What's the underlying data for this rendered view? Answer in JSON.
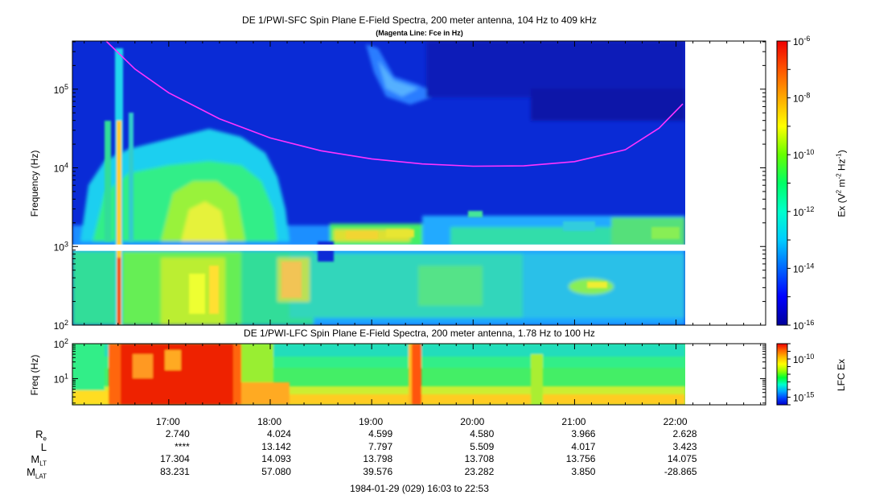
{
  "chart_data": [
    {
      "type": "heatmap",
      "title": "DE 1/PWI-SFC  Spin Plane E-Field Spectra, 200 meter antenna, 104 Hz to 409 kHz",
      "subtitle": "(Magenta Line: Fce in Hz)",
      "ylabel": "Frequency (Hz)",
      "yscale": "log",
      "ylim": [
        100,
        409000
      ],
      "yticks": [
        {
          "base": "10",
          "exp": "2"
        },
        {
          "base": "10",
          "exp": "3"
        },
        {
          "base": "10",
          "exp": "4"
        },
        {
          "base": "10",
          "exp": "5"
        }
      ],
      "xlim": [
        "16:03",
        "22:53"
      ],
      "data_end": "22:06",
      "data_gap_hz": [
        880,
        1060
      ],
      "colorbar": {
        "label_parts": [
          "Ex (V",
          "2",
          " m",
          "-2",
          " Hz",
          "-1",
          ")"
        ],
        "scale": "log",
        "range": [
          1e-16,
          1e-06
        ],
        "ticks": [
          {
            "base": "10",
            "exp": "-6"
          },
          {
            "base": "10",
            "exp": "-8"
          },
          {
            "base": "10",
            "exp": "-10"
          },
          {
            "base": "10",
            "exp": "-12"
          },
          {
            "base": "10",
            "exp": "-14"
          },
          {
            "base": "10",
            "exp": "-16"
          }
        ],
        "colors": [
          "#000099",
          "#0000ff",
          "#0066ff",
          "#00ccff",
          "#00ffcc",
          "#00ff66",
          "#66ff00",
          "#ffff00",
          "#ffaa00",
          "#ff5500",
          "#ee0000"
        ]
      },
      "fce_line": {
        "name": "Fce",
        "color": "#ff33ff",
        "points": [
          {
            "t": "16:23",
            "f": 409000
          },
          {
            "t": "16:40",
            "f": 180000
          },
          {
            "t": "17:00",
            "f": 90000
          },
          {
            "t": "17:30",
            "f": 42000
          },
          {
            "t": "18:00",
            "f": 24000
          },
          {
            "t": "18:30",
            "f": 16500
          },
          {
            "t": "19:00",
            "f": 13000
          },
          {
            "t": "19:30",
            "f": 11200
          },
          {
            "t": "20:00",
            "f": 10500
          },
          {
            "t": "20:30",
            "f": 10600
          },
          {
            "t": "21:00",
            "f": 12000
          },
          {
            "t": "21:30",
            "f": 17000
          },
          {
            "t": "21:50",
            "f": 32000
          },
          {
            "t": "22:04",
            "f": 65000
          }
        ]
      }
    },
    {
      "type": "heatmap",
      "title": "DE 1/PWI-LFC  Spin Plane E-Field Spectra, 200 meter antenna, 1.78 Hz to 100 Hz",
      "ylabel": "Freq (Hz)",
      "yscale": "log",
      "ylim": [
        1.78,
        100
      ],
      "yticks": [
        {
          "base": "10",
          "exp": "2"
        },
        {
          "base": "10",
          "exp": "1"
        }
      ],
      "xlim": [
        "16:03",
        "22:53"
      ],
      "data_end": "22:06",
      "colorbar": {
        "label": "LFC Ex",
        "scale": "log",
        "range": [
          1e-16,
          1e-08
        ],
        "ticks": [
          {
            "base": "10",
            "exp": "-10"
          },
          {
            "base": "10",
            "exp": "-15"
          }
        ],
        "colors": [
          "#0000cc",
          "#0044ff",
          "#00aaff",
          "#00ffcc",
          "#00ff33",
          "#99ff00",
          "#ffff00",
          "#ffbb00",
          "#ff6600",
          "#ee0000"
        ]
      }
    }
  ],
  "x_axis": {
    "ticks": [
      "17:00",
      "18:00",
      "19:00",
      "20:00",
      "21:00",
      "22:00"
    ],
    "tick_times": [
      "17:00",
      "18:00",
      "19:00",
      "20:00",
      "21:00",
      "22:00"
    ],
    "minor_interval_min": 10
  },
  "ephemeris": {
    "rows": [
      {
        "label": "R",
        "sub": "e",
        "values": [
          "2.740",
          "4.024",
          "4.599",
          "4.580",
          "3.966",
          "2.628"
        ]
      },
      {
        "label": "L",
        "sub": "",
        "values": [
          "****",
          "13.142",
          "7.797",
          "5.509",
          "4.017",
          "3.423"
        ]
      },
      {
        "label": "M",
        "sub": "LT",
        "values": [
          "17.304",
          "14.093",
          "13.798",
          "13.708",
          "13.756",
          "14.075"
        ]
      },
      {
        "label": "M",
        "sub": "LAT",
        "values": [
          "83.231",
          "57.080",
          "39.576",
          "23.282",
          "3.850",
          "-28.865"
        ]
      }
    ]
  },
  "footer": "1984-01-29 (029) 16:03 to 22:53"
}
